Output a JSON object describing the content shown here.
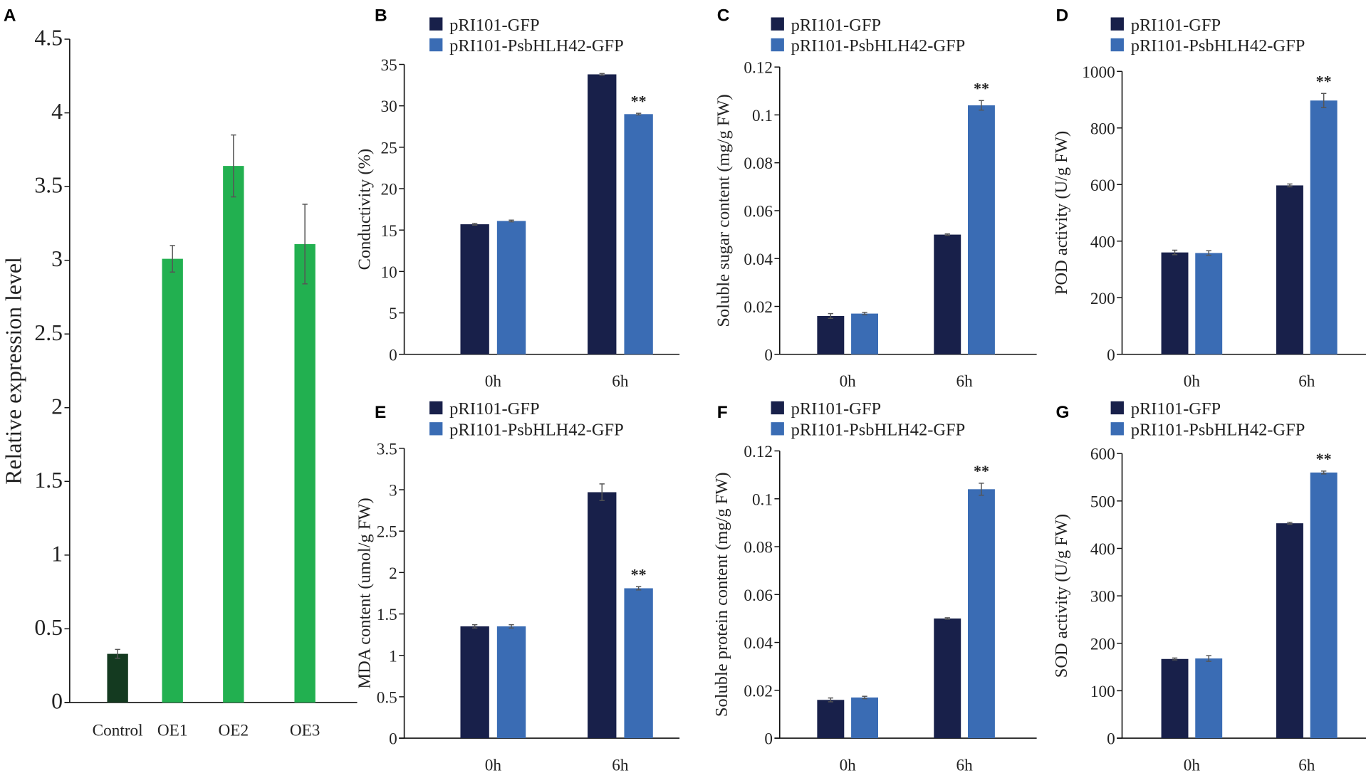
{
  "colors": {
    "ctrl_gfp": "#18204a",
    "psbhlh42": "#3a6cb4",
    "oe": "#22b050",
    "control": "#143a20"
  },
  "chart_data": [
    {
      "panel": "A",
      "type": "bar",
      "ylabel": "Relative expression level",
      "categories": [
        "Control",
        "OE1",
        "OE2",
        "OE3"
      ],
      "values": [
        0.33,
        3.01,
        3.64,
        3.11
      ],
      "errors": [
        0.03,
        0.09,
        0.21,
        0.27
      ],
      "bar_colors": [
        "#143a20",
        "#22b050",
        "#22b050",
        "#22b050"
      ],
      "yticks": [
        "0",
        "0.5",
        "1",
        "1.5",
        "2",
        "2.5",
        "3",
        "3.5",
        "4",
        "4.5"
      ],
      "ylim": [
        0,
        4.5
      ]
    },
    {
      "panel": "B",
      "type": "bar",
      "ylabel": "Conductivity (%)",
      "categories": [
        "0h",
        "6h"
      ],
      "legend": [
        "pRI101-GFP",
        "pRI101-PsbHLH42-GFP"
      ],
      "series": [
        {
          "name": "pRI101-GFP",
          "values": [
            15.7,
            33.8
          ],
          "errors": [
            0.1,
            0.1
          ]
        },
        {
          "name": "pRI101-PsbHLH42-GFP",
          "values": [
            16.1,
            29.0
          ],
          "errors": [
            0.1,
            0.1
          ]
        }
      ],
      "significance": [
        null,
        "**"
      ],
      "yticks": [
        "0",
        "5",
        "10",
        "15",
        "20",
        "25",
        "30",
        "35"
      ],
      "ylim": [
        0,
        35
      ]
    },
    {
      "panel": "C",
      "type": "bar",
      "ylabel": "Soluble sugar content  (mg/g FW)",
      "categories": [
        "0h",
        "6h"
      ],
      "legend": [
        "pRI101-GFP",
        "pRI101-PsbHLH42-GFP"
      ],
      "series": [
        {
          "name": "pRI101-GFP",
          "values": [
            0.016,
            0.05
          ],
          "errors": [
            0.001,
            0.0003
          ]
        },
        {
          "name": "pRI101-PsbHLH42-GFP",
          "values": [
            0.017,
            0.104
          ],
          "errors": [
            0.0005,
            0.002
          ]
        }
      ],
      "significance": [
        null,
        "**"
      ],
      "yticks": [
        "0",
        "0.02",
        "0.04",
        "0.06",
        "0.08",
        "0.1",
        "0.12"
      ],
      "ylim": [
        0,
        0.12
      ]
    },
    {
      "panel": "D",
      "type": "bar",
      "ylabel": "POD  activity  (U/g FW)",
      "categories": [
        "0h",
        "6h"
      ],
      "legend": [
        "pRI101-GFP",
        "pRI101-PsbHLH42-GFP"
      ],
      "series": [
        {
          "name": "pRI101-GFP",
          "values": [
            360,
            597
          ],
          "errors": [
            8,
            5
          ]
        },
        {
          "name": "pRI101-PsbHLH42-GFP",
          "values": [
            358,
            897
          ],
          "errors": [
            8,
            25
          ]
        }
      ],
      "significance": [
        null,
        "**"
      ],
      "yticks": [
        "0",
        "200",
        "400",
        "600",
        "800",
        "1000"
      ],
      "ylim": [
        0,
        1000
      ]
    },
    {
      "panel": "E",
      "type": "bar",
      "ylabel": "MDA content   (umol/g FW)",
      "categories": [
        "0h",
        "6h"
      ],
      "legend": [
        "pRI101-GFP",
        "pRI101-PsbHLH42-GFP"
      ],
      "series": [
        {
          "name": "pRI101-GFP",
          "values": [
            1.35,
            2.97
          ],
          "errors": [
            0.02,
            0.1
          ]
        },
        {
          "name": "pRI101-PsbHLH42-GFP",
          "values": [
            1.35,
            1.81
          ],
          "errors": [
            0.02,
            0.02
          ]
        }
      ],
      "significance": [
        null,
        "**"
      ],
      "yticks": [
        "0",
        "0.5",
        "1",
        "1.5",
        "2",
        "2.5",
        "3",
        "3.5"
      ],
      "ylim": [
        0,
        3.5
      ]
    },
    {
      "panel": "F",
      "type": "bar",
      "ylabel": "Soluble protein content   (mg/g FW)",
      "categories": [
        "0h",
        "6h"
      ],
      "legend": [
        "pRI101-GFP",
        "pRI101-PsbHLH42-GFP"
      ],
      "series": [
        {
          "name": "pRI101-GFP",
          "values": [
            0.016,
            0.05
          ],
          "errors": [
            0.0008,
            0.0003
          ]
        },
        {
          "name": "pRI101-PsbHLH42-GFP",
          "values": [
            0.017,
            0.104
          ],
          "errors": [
            0.0005,
            0.0025
          ]
        }
      ],
      "significance": [
        null,
        "**"
      ],
      "yticks": [
        "0",
        "0.02",
        "0.04",
        "0.06",
        "0.08",
        "0.1",
        "0.12"
      ],
      "ylim": [
        0,
        0.12
      ]
    },
    {
      "panel": "G",
      "type": "bar",
      "ylabel": "SOD  activity  (U/g FW)",
      "categories": [
        "0h",
        "6h"
      ],
      "legend": [
        "pRI101-GFP",
        "pRI101-PsbHLH42-GFP"
      ],
      "series": [
        {
          "name": "pRI101-GFP",
          "values": [
            167,
            453
          ],
          "errors": [
            2,
            2
          ]
        },
        {
          "name": "pRI101-PsbHLH42-GFP",
          "values": [
            168,
            560
          ],
          "errors": [
            6,
            3
          ]
        }
      ],
      "significance": [
        null,
        "**"
      ],
      "yticks": [
        "0",
        "100",
        "200",
        "300",
        "400",
        "500",
        "600"
      ],
      "ylim": [
        0,
        600
      ]
    }
  ]
}
